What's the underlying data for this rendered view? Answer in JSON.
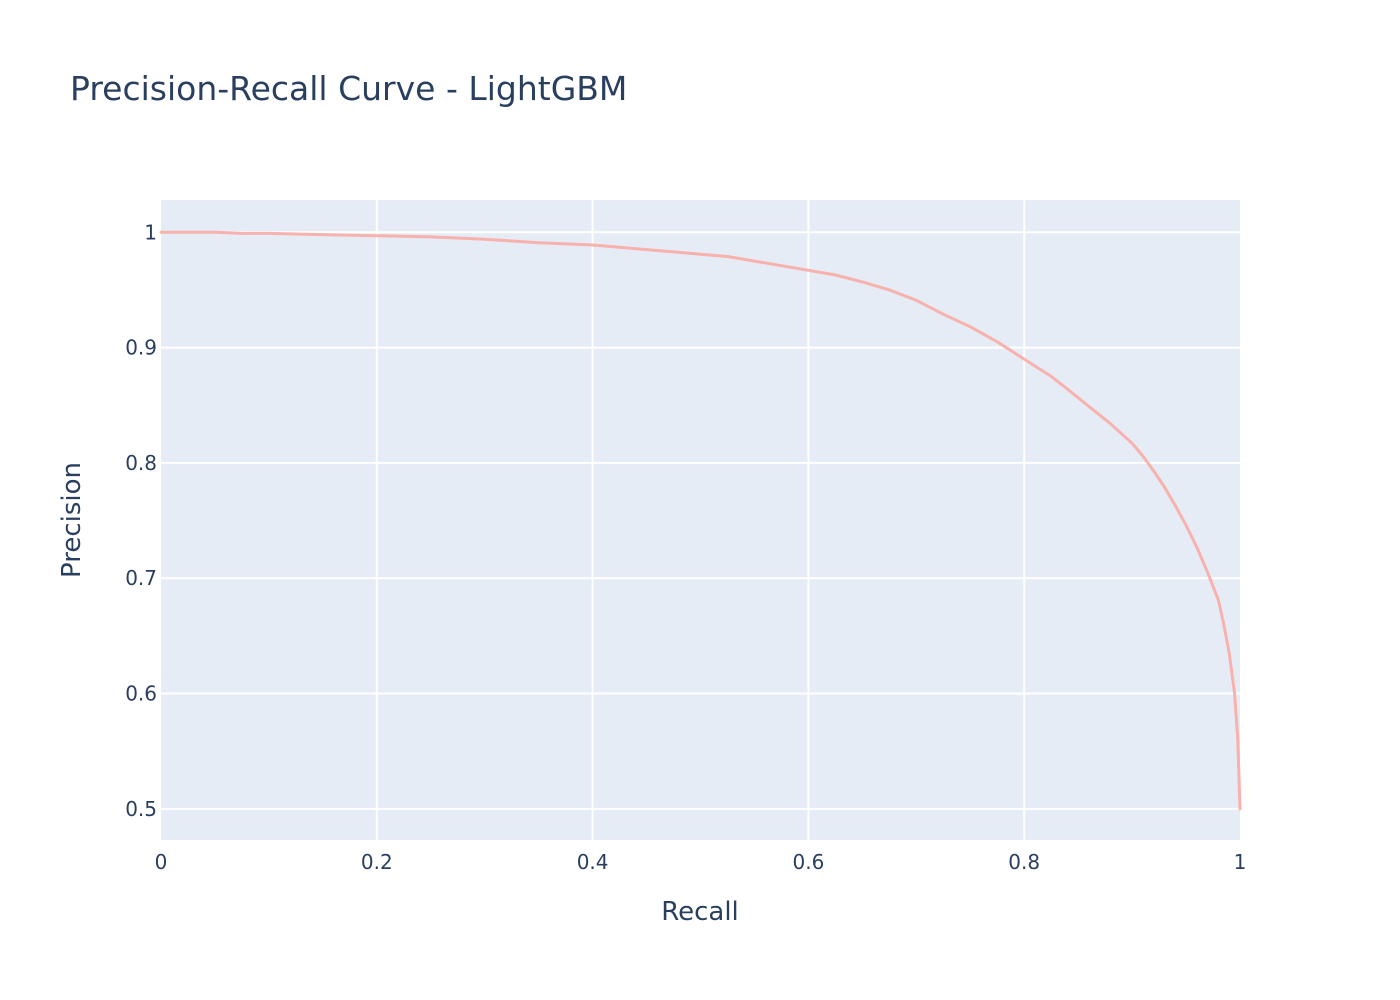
{
  "chart_data": {
    "type": "line",
    "title": "Precision-Recall Curve - LightGBM",
    "xlabel": "Recall",
    "ylabel": "Precision",
    "xlim": [
      0,
      1
    ],
    "ylim": [
      0.473,
      1.028
    ],
    "xticks": [
      "0",
      "0.2",
      "0.4",
      "0.6",
      "0.8",
      "1"
    ],
    "xtick_values": [
      0,
      0.2,
      0.4,
      0.6,
      0.8,
      1
    ],
    "yticks": [
      "0.5",
      "0.6",
      "0.7",
      "0.8",
      "0.9",
      "1"
    ],
    "ytick_values": [
      0.5,
      0.6,
      0.7,
      0.8,
      0.9,
      1
    ],
    "grid": true,
    "plot_background": "#e5ecf6",
    "grid_color": "#ffffff",
    "text_color": "#2a3f5f",
    "series": [
      {
        "color": "#f8b1ad",
        "x": [
          0,
          0.05,
          0.075,
          0.1,
          0.15,
          0.2,
          0.25,
          0.3,
          0.35,
          0.4,
          0.425,
          0.45,
          0.475,
          0.5,
          0.525,
          0.55,
          0.575,
          0.6,
          0.625,
          0.65,
          0.675,
          0.7,
          0.725,
          0.75,
          0.775,
          0.8,
          0.825,
          0.84,
          0.86,
          0.88,
          0.9,
          0.91,
          0.92,
          0.93,
          0.94,
          0.95,
          0.96,
          0.97,
          0.98,
          0.985,
          0.99,
          0.995,
          0.998,
          1.0
        ],
        "y": [
          1.0,
          1.0,
          0.999,
          0.999,
          0.998,
          0.997,
          0.996,
          0.994,
          0.991,
          0.989,
          0.987,
          0.985,
          0.983,
          0.981,
          0.979,
          0.975,
          0.971,
          0.967,
          0.963,
          0.957,
          0.95,
          0.941,
          0.929,
          0.918,
          0.905,
          0.89,
          0.875,
          0.864,
          0.849,
          0.834,
          0.817,
          0.806,
          0.793,
          0.779,
          0.763,
          0.746,
          0.727,
          0.705,
          0.681,
          0.66,
          0.635,
          0.6,
          0.56,
          0.5
        ]
      }
    ]
  }
}
